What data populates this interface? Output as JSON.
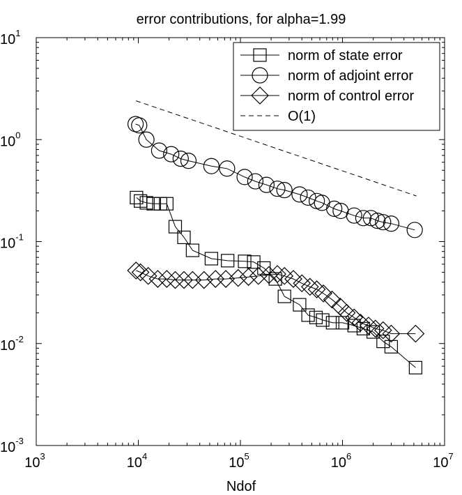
{
  "chart_data": {
    "type": "line",
    "title": "error contributions, for alpha=1.99",
    "xlabel": "Ndof",
    "ylabel": "",
    "xscale": "log",
    "yscale": "log",
    "xlim": [
      1000,
      10000000
    ],
    "ylim": [
      0.001,
      10
    ],
    "x_ticks": [
      {
        "value": 1000,
        "base": "10",
        "exp": "3"
      },
      {
        "value": 10000,
        "base": "10",
        "exp": "4"
      },
      {
        "value": 100000,
        "base": "10",
        "exp": "5"
      },
      {
        "value": 1000000,
        "base": "10",
        "exp": "6"
      },
      {
        "value": 10000000,
        "base": "10",
        "exp": "7"
      }
    ],
    "y_ticks": [
      {
        "value": 0.001,
        "base": "10",
        "exp": "-3"
      },
      {
        "value": 0.01,
        "base": "10",
        "exp": "-2"
      },
      {
        "value": 0.1,
        "base": "10",
        "exp": "-1"
      },
      {
        "value": 1,
        "base": "10",
        "exp": "0"
      },
      {
        "value": 10,
        "base": "10",
        "exp": "1"
      }
    ],
    "grid": false,
    "legend_position": "top-right",
    "series": [
      {
        "name": "norm of state error",
        "marker": "square",
        "line": "solid",
        "x": [
          9600,
          10500,
          12000,
          14000,
          16500,
          19000,
          23000,
          28000,
          34000,
          52000,
          75000,
          110000,
          135000,
          170000,
          220000,
          270000,
          380000,
          460000,
          550000,
          640000,
          800000,
          1000000,
          1300000,
          1600000,
          2000000,
          2500000,
          3000000,
          5200000
        ],
        "y": [
          0.27,
          0.25,
          0.24,
          0.235,
          0.235,
          0.235,
          0.14,
          0.11,
          0.082,
          0.068,
          0.065,
          0.064,
          0.063,
          0.055,
          0.043,
          0.029,
          0.024,
          0.019,
          0.018,
          0.017,
          0.016,
          0.016,
          0.015,
          0.014,
          0.013,
          0.0105,
          0.0093,
          0.0058
        ]
      },
      {
        "name": "norm of adjoint error",
        "marker": "circle",
        "line": "solid",
        "x": [
          9400,
          10200,
          12000,
          16000,
          21000,
          26000,
          31000,
          52000,
          74000,
          110000,
          140000,
          180000,
          230000,
          270000,
          380000,
          460000,
          560000,
          630000,
          830000,
          960000,
          1300000,
          1600000,
          1900000,
          2200000,
          2500000,
          3000000,
          5100000
        ],
        "y": [
          1.42,
          1.38,
          1.0,
          0.78,
          0.72,
          0.65,
          0.62,
          0.55,
          0.52,
          0.43,
          0.39,
          0.36,
          0.33,
          0.32,
          0.29,
          0.27,
          0.25,
          0.24,
          0.21,
          0.2,
          0.18,
          0.17,
          0.17,
          0.16,
          0.155,
          0.15,
          0.13
        ]
      },
      {
        "name": "norm of control error",
        "marker": "diamond",
        "line": "solid",
        "x": [
          9500,
          10500,
          12500,
          15500,
          19000,
          23000,
          28000,
          34000,
          44000,
          57000,
          72000,
          95000,
          120000,
          150000,
          190000,
          230000,
          270000,
          330000,
          400000,
          480000,
          560000,
          650000,
          790000,
          950000,
          1100000,
          1300000,
          1500000,
          1800000,
          2100000,
          2500000,
          3000000,
          5200000
        ],
        "y": [
          0.052,
          0.05,
          0.046,
          0.043,
          0.043,
          0.042,
          0.042,
          0.042,
          0.042,
          0.043,
          0.043,
          0.044,
          0.045,
          0.046,
          0.047,
          0.048,
          0.046,
          0.043,
          0.039,
          0.036,
          0.034,
          0.031,
          0.027,
          0.023,
          0.02,
          0.018,
          0.016,
          0.015,
          0.014,
          0.0135,
          0.0125,
          0.0125
        ]
      },
      {
        "name": "O(1)",
        "marker": "none",
        "line": "dashed",
        "x": [
          9500,
          5300000
        ],
        "y": [
          2.4,
          0.28
        ]
      }
    ]
  }
}
